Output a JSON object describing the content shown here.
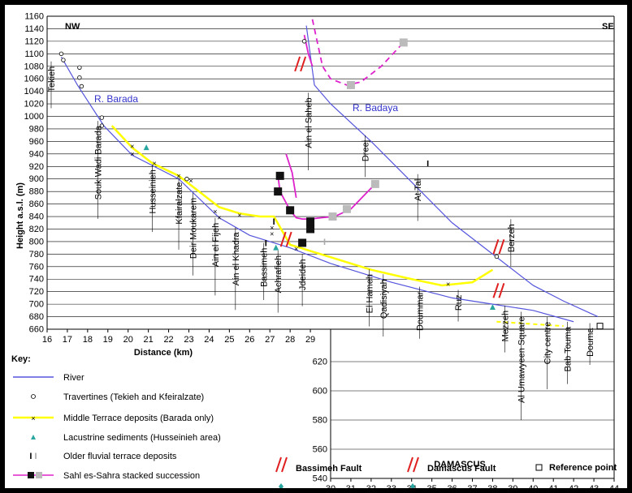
{
  "chart_data": {
    "type": "line",
    "title": "",
    "ylabel": "Height a.s.l. (m)",
    "xlabel": "Distance (km)",
    "ylim": [
      660,
      1160
    ],
    "xlim": [
      16,
      44
    ],
    "lower_ylim": [
      540,
      640
    ],
    "yticks": [
      660,
      680,
      700,
      720,
      740,
      760,
      780,
      800,
      820,
      840,
      860,
      880,
      900,
      920,
      940,
      960,
      980,
      1000,
      1020,
      1040,
      1060,
      1080,
      1100,
      1120,
      1140,
      1160
    ],
    "lower_yticks": [
      540,
      560,
      580,
      600,
      620
    ],
    "xticks_left": [
      16,
      17,
      18,
      19,
      20,
      21,
      22,
      23,
      24,
      25,
      26,
      27,
      28,
      29
    ],
    "xticks_right": [
      30,
      31,
      32,
      33,
      34,
      35,
      36,
      37,
      38,
      39,
      40,
      41,
      42,
      43,
      44
    ],
    "corner_labels": {
      "left": "NW",
      "right": "SE"
    },
    "river_labels": [
      "R. Barada",
      "R. Badaya"
    ],
    "region_label": "DAMASCUS",
    "series": [
      {
        "name": "River",
        "color": "#5555dd",
        "x": [
          16.7,
          17.5,
          18.8,
          20.2,
          22.5,
          24.5,
          26,
          28,
          30,
          33,
          36,
          38,
          40,
          42
        ],
        "y": [
          1095,
          1050,
          985,
          938,
          900,
          838,
          810,
          790,
          765,
          735,
          710,
          700,
          690,
          672
        ]
      },
      {
        "name": "River",
        "color": "#5555dd",
        "x": [
          28.8,
          29.2,
          30,
          32,
          34,
          36,
          38,
          40,
          41.5,
          43.2
        ],
        "y": [
          1145,
          1050,
          1020,
          960,
          895,
          830,
          780,
          730,
          705,
          680
        ]
      },
      {
        "name": "Middle Terrace deposits (Barada only)",
        "color": "#ffff00",
        "x": [
          19.2,
          20.2,
          21.2,
          22.5,
          23.5,
          24.5,
          25.5,
          26.5,
          27.2,
          28,
          30,
          32,
          34,
          35.5,
          37,
          38
        ],
        "y": [
          985,
          950,
          925,
          905,
          880,
          855,
          845,
          840,
          840,
          795,
          775,
          755,
          740,
          730,
          735,
          755
        ]
      },
      {
        "name": "Sahl es-Sahra stacked succession",
        "color": "#dd22cc",
        "x": [
          27.4,
          27.5,
          28,
          28.3,
          28.6,
          29,
          29.5,
          30.2,
          31,
          32.2
        ],
        "y": [
          905,
          880,
          850,
          838,
          836,
          836,
          838,
          840,
          852,
          892
        ]
      },
      {
        "name": "Sahl es-Sahra stacked succession",
        "color": "#dd22cc",
        "x": [
          29.1,
          29.6,
          30,
          30.8,
          31.5,
          32.5,
          33.6
        ],
        "y": [
          1155,
          1080,
          1060,
          1050,
          1055,
          1080,
          1118
        ]
      },
      {
        "name": "Sahl es-Sahra stacked succession",
        "color": "#dd22cc",
        "x": [
          28.7,
          28.9,
          29.1
        ],
        "y": [
          1130,
          1100,
          1080
        ]
      },
      {
        "name": "Sahl es-Sahra stacked succession",
        "color": "#dd22cc",
        "x": [
          27.8,
          28.1,
          28.3
        ],
        "y": [
          940,
          910,
          870
        ]
      }
    ],
    "travertines": [
      [
        16.7,
        1100
      ],
      [
        16.8,
        1090
      ],
      [
        17.6,
        1078
      ],
      [
        17.6,
        1062
      ],
      [
        17.7,
        1048
      ],
      [
        18.7,
        998
      ],
      [
        18.7,
        985
      ],
      [
        22.9,
        900
      ],
      [
        28.7,
        1120
      ],
      [
        38.2,
        776
      ]
    ],
    "middle_terrace_points": [
      [
        20.2,
        952
      ],
      [
        20.2,
        940
      ],
      [
        21.3,
        925
      ],
      [
        22.5,
        905
      ],
      [
        23.1,
        897
      ],
      [
        24.3,
        848
      ],
      [
        24.5,
        838
      ],
      [
        25.5,
        842
      ],
      [
        27.1,
        822
      ],
      [
        27.1,
        812
      ],
      [
        28.3,
        788
      ],
      [
        35.8,
        732
      ]
    ],
    "lacustrine_points": [
      [
        20.9,
        950
      ],
      [
        27.3,
        790
      ],
      [
        38,
        695
      ]
    ],
    "older_terrace_points": [
      [
        26.8,
        798
      ],
      [
        27.2,
        832
      ],
      [
        29.7,
        800
      ],
      [
        34.8,
        925
      ]
    ],
    "sahl_points_black": [
      [
        27.5,
        905
      ],
      [
        27.4,
        880
      ],
      [
        28,
        850
      ],
      [
        28.6,
        798
      ],
      [
        29,
        832
      ],
      [
        29,
        820
      ]
    ],
    "sahl_points_grey": [
      [
        30.1,
        840
      ],
      [
        30.8,
        852
      ],
      [
        32.2,
        892
      ],
      [
        33.6,
        1118
      ],
      [
        31,
        1050
      ]
    ],
    "place_labels": [
      {
        "text": "Tekieh",
        "x": 16.2,
        "y_top": 1080
      },
      {
        "text": "Souk Wadi Barada",
        "x": 18.5,
        "y_top": 985
      },
      {
        "text": "Husseinieh",
        "x": 21.2,
        "y_top": 915
      },
      {
        "text": "Kfairalzate",
        "x": 22.5,
        "y_top": 895
      },
      {
        "text": "Deir Moukarem",
        "x": 23.2,
        "y_top": 870
      },
      {
        "text": "Ain el Fijeh",
        "x": 24.3,
        "y_top": 830
      },
      {
        "text": "Ain el Khadra",
        "x": 25.3,
        "y_top": 815
      },
      {
        "text": "Bassimeh",
        "x": 26.7,
        "y_top": 790
      },
      {
        "text": "Achrafieh",
        "x": 27.4,
        "y_top": 778
      },
      {
        "text": "Jdeideh",
        "x": 28.6,
        "y_top": 772
      },
      {
        "text": "Ain el Saheb",
        "x": 28.9,
        "y_top": 1030
      },
      {
        "text": "Dreej",
        "x": 31.7,
        "y_top": 962
      },
      {
        "text": "At Tal",
        "x": 34.3,
        "y_top": 900
      },
      {
        "text": "Berzeh",
        "x": 38.9,
        "y_top": 828
      },
      {
        "text": "El Hameh",
        "x": 31.9,
        "y_top": 748
      },
      {
        "text": "Qadisiyah",
        "x": 32.6,
        "y_top": 740
      },
      {
        "text": "Doummar",
        "x": 34.4,
        "y_top": 720
      },
      {
        "text": "Ruz",
        "x": 36.3,
        "y_top": 715
      },
      {
        "text": "Mezzeh",
        "x": 38.6,
        "y_top": 690
      },
      {
        "text": "Al Umawyeen Square",
        "x": 39.4,
        "y_top": 680
      },
      {
        "text": "City centre",
        "x": 40.7,
        "y_top": 672
      },
      {
        "text": "Bab Touma",
        "x": 41.7,
        "y_top": 664
      },
      {
        "text": "Douma",
        "x": 42.8,
        "y_top": 662
      }
    ]
  },
  "legend": {
    "key_title": "Key:",
    "river": "River",
    "travertines": "Travertines (Tekieh and Kfeiralzate)",
    "middle_terrace": "Middle Terrace deposits (Barada only)",
    "lacustrine": "Lacustrine sediments (Husseinieh area)",
    "older_terrace": "Older fluvial terrace deposits",
    "sahl": "Sahl es-Sahra stacked succession",
    "bassimeh_fault": "Bassimeh Fault",
    "damascus_fault": "Damascus Fault",
    "reference_point": "Reference point"
  },
  "colors": {
    "river": "#5555dd",
    "middle_terrace": "#ffff00",
    "sahl": "#dd22cc",
    "lacustrine": "#2aa6a0",
    "fault": "#e02020"
  }
}
